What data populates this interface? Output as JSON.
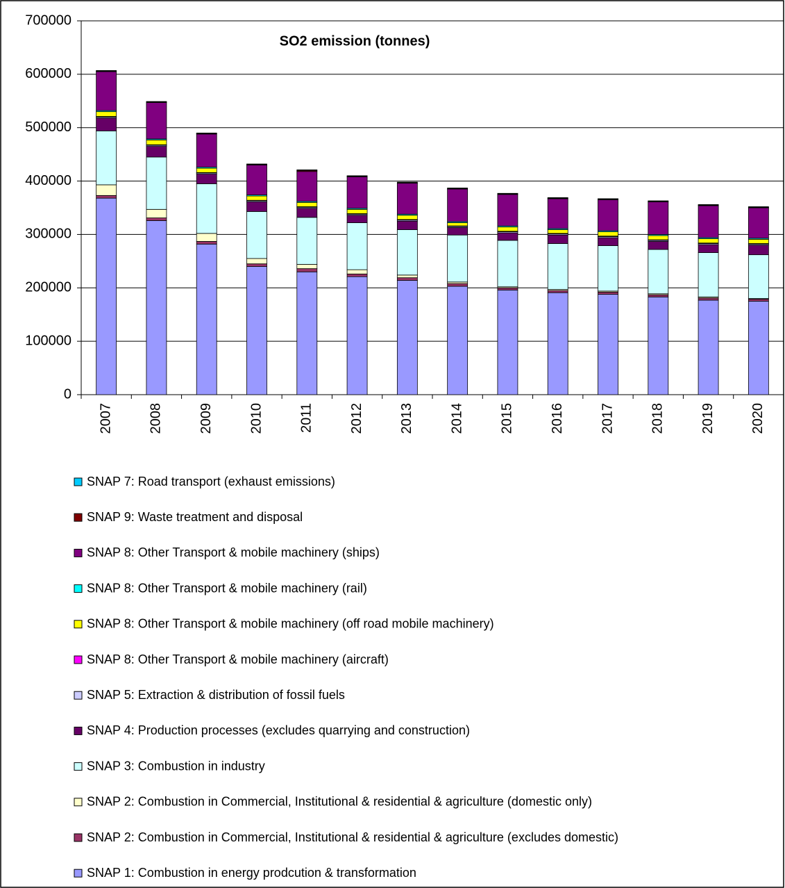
{
  "chart_data": {
    "type": "stacked_bar",
    "title": "SO2 emission (tonnes)",
    "categories": [
      "2007",
      "2008",
      "2009",
      "2010",
      "2011",
      "2012",
      "2013",
      "2014",
      "2015",
      "2016",
      "2017",
      "2018",
      "2019",
      "2020"
    ],
    "ylim": [
      0,
      700000
    ],
    "yticks": [
      0,
      100000,
      200000,
      300000,
      400000,
      500000,
      600000,
      700000
    ],
    "grid": true,
    "series": [
      {
        "name": "SNAP 1: Combustion in energy prodcution & transformation",
        "color": "#9999ff",
        "values": [
          368000,
          326000,
          282000,
          240000,
          230000,
          221000,
          214000,
          203000,
          196000,
          191000,
          188000,
          183000,
          177000,
          175000
        ]
      },
      {
        "name": "SNAP 2: Combustion in Commercial, Institutional & residential & agriculture (excludes domestic)",
        "color": "#993366",
        "values": [
          5000,
          5000,
          5000,
          5000,
          6000,
          5000,
          5000,
          5000,
          4000,
          4000,
          4000,
          4000,
          4000,
          4000
        ]
      },
      {
        "name": "SNAP 2: Combustion in Commercial, Institutional & residential & agriculture (domestic only)",
        "color": "#ffffcc",
        "values": [
          20000,
          16000,
          15000,
          10000,
          8000,
          8000,
          5000,
          3000,
          2000,
          2000,
          2000,
          2000,
          2000,
          1000
        ]
      },
      {
        "name": "SNAP 3: Combustion in industry",
        "color": "#ccffff",
        "values": [
          101000,
          98000,
          93000,
          88000,
          88000,
          88000,
          85000,
          88000,
          87000,
          86000,
          85000,
          83000,
          83000,
          82000
        ]
      },
      {
        "name": "SNAP 4: Production processes (excludes quarrying and construction)",
        "color": "#660066",
        "values": [
          24000,
          20000,
          18000,
          18000,
          17000,
          14000,
          16000,
          14000,
          14000,
          16000,
          15000,
          15000,
          15000,
          18000
        ]
      },
      {
        "name": "SNAP 5: Extraction & distribution of fossil fuels",
        "color": "#ccccff",
        "values": [
          2000,
          2000,
          2000,
          2000,
          2000,
          2000,
          2000,
          2000,
          2000,
          2000,
          2000,
          2000,
          2000,
          2000
        ]
      },
      {
        "name": "SNAP 8: Other Transport & mobile machinery (aircraft)",
        "color": "#ff00ff",
        "values": [
          1000,
          1000,
          1000,
          1000,
          1000,
          1000,
          1000,
          1000,
          1000,
          1000,
          1000,
          1000,
          1000,
          1000
        ]
      },
      {
        "name": "SNAP 8: Other Transport & mobile machinery (off road mobile machinery)",
        "color": "#ffff00",
        "values": [
          9000,
          9000,
          8000,
          8000,
          8000,
          8000,
          8000,
          6000,
          8000,
          7000,
          8000,
          8000,
          8000,
          8000
        ]
      },
      {
        "name": "SNAP 8: Other Transport & mobile machinery (rail)",
        "color": "#00ffff",
        "values": [
          2000,
          2000,
          2000,
          2000,
          2000,
          2000,
          2000,
          2000,
          2000,
          2000,
          2000,
          2000,
          2000,
          2000
        ]
      },
      {
        "name": "SNAP 8: Other Transport & mobile machinery (ships)",
        "color": "#800080",
        "values": [
          73000,
          68000,
          62000,
          56000,
          56000,
          59000,
          58000,
          61000,
          59000,
          56000,
          58000,
          61000,
          60000,
          57000
        ]
      },
      {
        "name": "SNAP 9: Waste treatment and disposal",
        "color": "#800000",
        "values": [
          1000,
          1000,
          1000,
          1000,
          2000,
          1000,
          1000,
          1000,
          1000,
          1000,
          1000,
          1000,
          1000,
          1000
        ]
      },
      {
        "name": "SNAP 7: Road transport (exhaust emissions)",
        "color": "#00ccff",
        "values": [
          1000,
          1000,
          1000,
          1000,
          1000,
          1000,
          1000,
          1000,
          1000,
          1000,
          1000,
          1000,
          1000,
          1000
        ]
      }
    ]
  }
}
